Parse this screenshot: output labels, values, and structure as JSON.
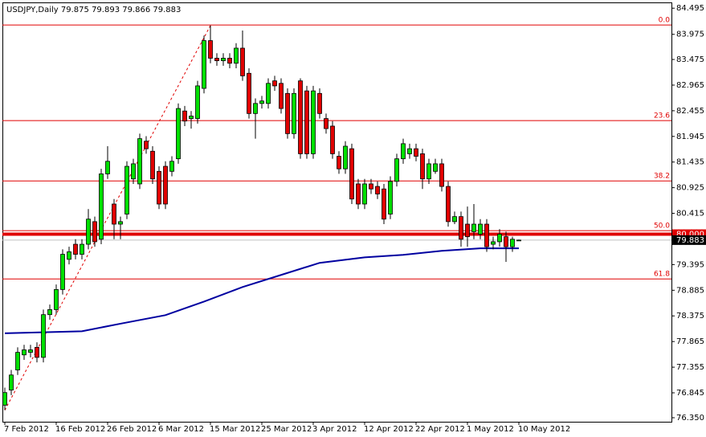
{
  "chart_data": {
    "type": "candlestick",
    "title": "USDJPY,Daily  79.875 79.893 79.866 79.883",
    "categories": [
      "7 Feb 2012",
      null,
      null,
      null,
      null,
      null,
      null,
      null,
      "16 Feb 2012",
      null,
      null,
      null,
      null,
      null,
      null,
      null,
      "26 Feb 2012",
      null,
      null,
      null,
      null,
      null,
      null,
      null,
      "6 Mar 2012",
      null,
      null,
      null,
      null,
      null,
      null,
      null,
      "15 Mar 2012",
      null,
      null,
      null,
      null,
      null,
      null,
      null,
      "25 Mar 2012",
      null,
      null,
      null,
      null,
      null,
      null,
      null,
      "3 Apr 2012",
      null,
      null,
      null,
      null,
      null,
      null,
      null,
      "12 Apr 2012",
      null,
      null,
      null,
      null,
      null,
      null,
      null,
      "22 Apr 2012",
      null,
      null,
      null,
      null,
      null,
      null,
      null,
      "1 May 2012",
      null,
      null,
      null,
      null,
      null,
      null,
      null,
      "10 May 2012"
    ],
    "open": [
      76.6,
      76.9,
      77.3,
      77.6,
      77.65,
      77.75,
      77.55,
      78.4,
      78.5,
      78.9,
      79.5,
      79.8,
      79.6,
      79.8,
      80.25,
      79.9,
      81.2,
      80.6,
      80.2,
      80.4,
      81.1,
      81.0,
      81.85,
      81.65,
      81.25,
      81.35,
      81.25,
      81.5,
      82.45,
      82.3,
      82.3,
      82.9,
      83.85,
      83.5,
      83.45,
      83.5,
      83.4,
      83.7,
      83.2,
      82.4,
      82.6,
      82.6,
      83.05,
      83.0,
      82.8,
      82.0,
      83.05,
      82.85,
      81.6,
      82.8,
      82.3,
      82.15,
      81.55,
      81.3,
      81.7,
      81.0,
      80.6,
      81.0,
      80.95,
      80.9,
      80.4,
      81.05,
      81.5,
      81.6,
      81.7,
      81.6,
      81.1,
      81.25,
      81.4,
      80.95,
      80.25,
      80.35,
      80.2,
      80.05,
      80.0,
      80.2,
      79.8,
      79.85,
      79.95,
      79.75,
      79.875
    ],
    "high": [
      76.95,
      77.3,
      77.75,
      77.8,
      77.8,
      77.85,
      78.5,
      78.6,
      79.0,
      79.7,
      79.75,
      79.9,
      79.9,
      80.5,
      80.35,
      81.3,
      81.75,
      80.7,
      80.35,
      81.45,
      81.5,
      82.0,
      81.95,
      81.75,
      81.35,
      81.45,
      81.55,
      82.6,
      82.55,
      82.45,
      83.05,
      83.95,
      84.15,
      83.6,
      83.6,
      83.6,
      83.8,
      84.05,
      83.3,
      82.7,
      82.75,
      83.1,
      83.15,
      83.1,
      82.9,
      82.9,
      83.1,
      82.95,
      82.95,
      82.9,
      82.4,
      82.25,
      81.65,
      81.85,
      81.8,
      81.1,
      81.1,
      81.1,
      81.05,
      81.0,
      81.15,
      81.6,
      81.9,
      81.8,
      81.8,
      81.7,
      81.5,
      81.5,
      81.5,
      81.05,
      80.45,
      80.45,
      80.55,
      80.6,
      80.3,
      80.3,
      79.95,
      80.1,
      80.05,
      79.95,
      79.893
    ],
    "low": [
      76.5,
      76.8,
      77.2,
      77.5,
      77.55,
      77.45,
      77.45,
      78.3,
      78.4,
      78.8,
      79.4,
      79.5,
      79.5,
      79.7,
      79.75,
      79.8,
      81.1,
      79.9,
      79.9,
      80.3,
      81.0,
      80.9,
      81.6,
      81.0,
      80.5,
      80.5,
      81.15,
      81.4,
      82.15,
      82.1,
      82.2,
      82.8,
      83.4,
      83.35,
      83.35,
      83.3,
      83.3,
      83.05,
      82.3,
      81.9,
      82.5,
      82.5,
      82.85,
      82.4,
      81.9,
      81.9,
      81.5,
      81.5,
      81.5,
      82.3,
      82.0,
      81.5,
      81.2,
      81.2,
      80.6,
      80.5,
      80.5,
      80.8,
      80.7,
      80.2,
      80.3,
      80.95,
      81.4,
      81.5,
      81.45,
      80.9,
      81.0,
      81.2,
      80.85,
      80.15,
      80.2,
      79.75,
      79.75,
      79.9,
      79.9,
      79.65,
      79.7,
      79.75,
      79.45,
      79.65,
      79.866
    ],
    "close": [
      76.85,
      77.2,
      77.65,
      77.7,
      77.7,
      77.55,
      78.4,
      78.5,
      78.9,
      79.6,
      79.65,
      79.6,
      79.8,
      80.3,
      79.85,
      81.2,
      81.45,
      80.2,
      80.25,
      81.35,
      81.4,
      81.9,
      81.7,
      81.1,
      80.6,
      80.6,
      81.45,
      82.5,
      82.25,
      82.35,
      82.95,
      83.85,
      83.5,
      83.45,
      83.5,
      83.4,
      83.7,
      83.15,
      82.4,
      82.6,
      82.65,
      83.0,
      82.95,
      82.5,
      82.0,
      82.8,
      81.6,
      81.6,
      82.85,
      82.4,
      82.1,
      81.6,
      81.3,
      81.75,
      80.7,
      80.6,
      81.0,
      80.9,
      80.8,
      80.3,
      81.05,
      81.5,
      81.8,
      81.7,
      81.55,
      81.1,
      81.4,
      81.4,
      80.95,
      80.25,
      80.35,
      79.9,
      79.95,
      80.2,
      80.2,
      79.75,
      79.85,
      80.0,
      79.75,
      79.9,
      79.883
    ],
    "up_color": "#00e000",
    "down_color": "#e00000",
    "moving_average": {
      "color": "#0000a0",
      "x": [
        0,
        12,
        18,
        25,
        31,
        37,
        43,
        49,
        56,
        62,
        68,
        74,
        80
      ],
      "values": [
        78.03,
        78.07,
        78.22,
        78.39,
        78.66,
        78.95,
        79.19,
        79.43,
        79.54,
        79.59,
        79.67,
        79.72,
        79.72
      ]
    },
    "fib_trend": {
      "color": "#e00000",
      "x": [
        0,
        32
      ],
      "values": [
        76.5,
        84.15
      ]
    },
    "fib_levels": [
      {
        "value": 84.16,
        "label": "0.0"
      },
      {
        "value": 82.26,
        "label": "23.6"
      },
      {
        "value": 81.06,
        "label": "38.2"
      },
      {
        "value": 80.07,
        "label": "50.0"
      },
      {
        "value": 79.11,
        "label": "61.8"
      }
    ],
    "level_line": {
      "value": 80.0,
      "label": "80.000",
      "color": "#e00000"
    },
    "current_price": {
      "value": 79.883,
      "label": "79.883"
    },
    "ylim": [
      76.27,
      84.61
    ],
    "yticks": [
      84.495,
      83.975,
      83.475,
      82.965,
      82.455,
      81.945,
      81.435,
      80.925,
      80.415,
      79.395,
      78.885,
      78.375,
      77.865,
      77.355,
      76.845,
      {
        "value": 76.35,
        "label": "76.350"
      }
    ]
  }
}
